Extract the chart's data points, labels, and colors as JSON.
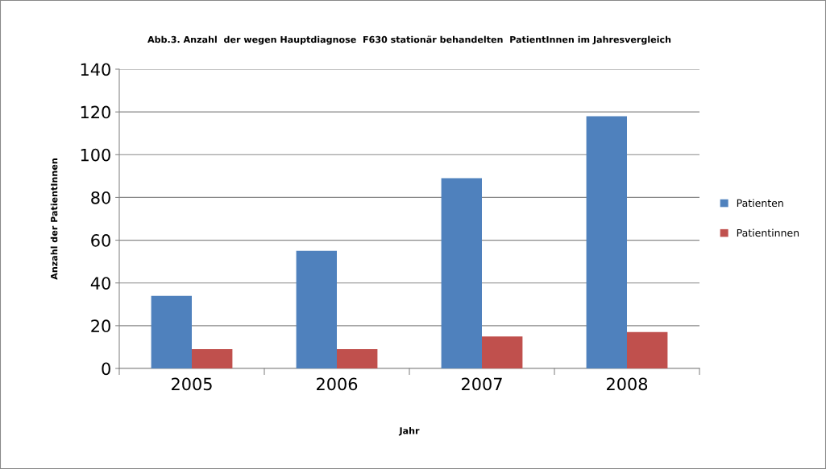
{
  "chart_data": {
    "type": "bar",
    "title": "Abb.3. Anzahl  der wegen Hauptdiagnose  F630 stationär behandelten  PatientInnen im Jahresvergleich",
    "xlabel": "Jahr",
    "ylabel": "Anzahl der PatientInnen",
    "categories": [
      "2005",
      "2006",
      "2007",
      "2008"
    ],
    "series": [
      {
        "name": "Patienten",
        "color": "#4f81bd",
        "values": [
          34,
          55,
          89,
          118
        ]
      },
      {
        "name": "Patientinnen",
        "color": "#c0504d",
        "values": [
          9,
          9,
          15,
          17
        ]
      }
    ],
    "ylim": [
      0,
      140
    ],
    "yticks": [
      0,
      20,
      40,
      60,
      80,
      100,
      120,
      140
    ],
    "grid": "y",
    "legend": "right"
  }
}
